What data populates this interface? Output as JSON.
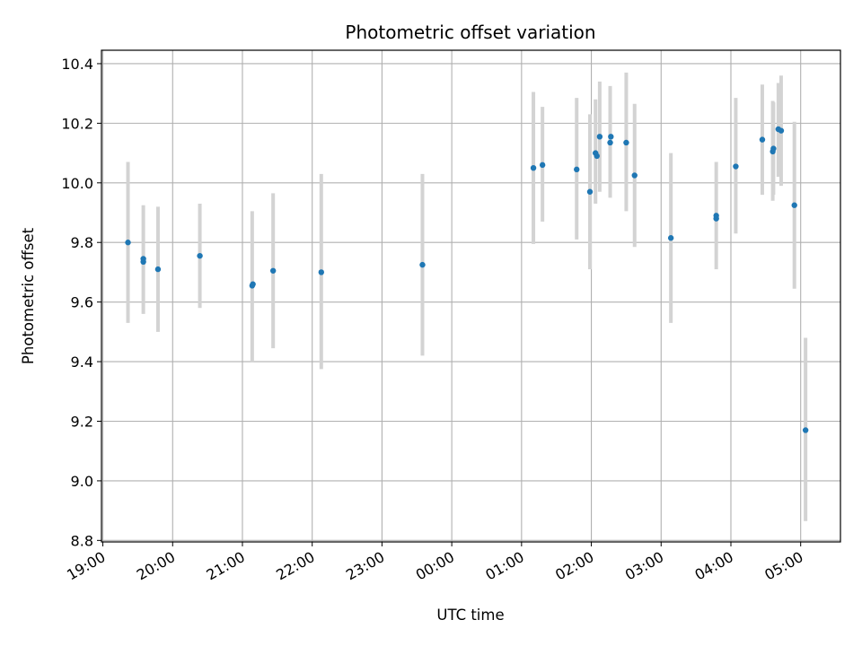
{
  "chart_data": {
    "type": "scatter",
    "title": "Photometric offset variation",
    "xlabel": "UTC time",
    "ylabel": "Photometric offset",
    "x_unit": "hours (UTC, continuing past midnight as 24+)",
    "xlim": [
      18.98,
      29.57
    ],
    "ylim": [
      8.795,
      10.445
    ],
    "x_ticks": [
      {
        "value": 19,
        "label": "19:00"
      },
      {
        "value": 20,
        "label": "20:00"
      },
      {
        "value": 21,
        "label": "21:00"
      },
      {
        "value": 22,
        "label": "22:00"
      },
      {
        "value": 23,
        "label": "23:00"
      },
      {
        "value": 24,
        "label": "00:00"
      },
      {
        "value": 25,
        "label": "01:00"
      },
      {
        "value": 26,
        "label": "02:00"
      },
      {
        "value": 27,
        "label": "03:00"
      },
      {
        "value": 28,
        "label": "04:00"
      },
      {
        "value": 29,
        "label": "05:00"
      }
    ],
    "y_ticks": [
      {
        "value": 8.8,
        "label": "8.8"
      },
      {
        "value": 9.0,
        "label": "9.0"
      },
      {
        "value": 9.2,
        "label": "9.2"
      },
      {
        "value": 9.4,
        "label": "9.4"
      },
      {
        "value": 9.6,
        "label": "9.6"
      },
      {
        "value": 9.8,
        "label": "9.8"
      },
      {
        "value": 10.0,
        "label": "10.0"
      },
      {
        "value": 10.2,
        "label": "10.2"
      },
      {
        "value": 10.4,
        "label": "10.4"
      }
    ],
    "grid": true,
    "point_color": "#1f77b4",
    "errorbar_color": "#d3d3d3",
    "points": [
      {
        "x": 19.36,
        "y": 9.8,
        "low": 9.53,
        "high": 10.07
      },
      {
        "x": 19.58,
        "y": 9.735,
        "low": 9.56,
        "high": 9.925
      },
      {
        "x": 19.58,
        "y": 9.745,
        "low": null,
        "high": null
      },
      {
        "x": 19.79,
        "y": 9.71,
        "low": 9.5,
        "high": 9.92
      },
      {
        "x": 20.39,
        "y": 9.755,
        "low": 9.58,
        "high": 9.93
      },
      {
        "x": 21.14,
        "y": 9.655,
        "low": 9.4,
        "high": 9.905
      },
      {
        "x": 21.15,
        "y": 9.66,
        "low": null,
        "high": null
      },
      {
        "x": 21.44,
        "y": 9.705,
        "low": 9.445,
        "high": 9.965
      },
      {
        "x": 22.13,
        "y": 9.7,
        "low": 9.375,
        "high": 10.03
      },
      {
        "x": 23.58,
        "y": 9.725,
        "low": 9.42,
        "high": 10.03
      },
      {
        "x": 25.17,
        "y": 10.05,
        "low": 9.795,
        "high": 10.305
      },
      {
        "x": 25.3,
        "y": 10.06,
        "low": 9.87,
        "high": 10.255
      },
      {
        "x": 25.79,
        "y": 10.045,
        "low": 9.81,
        "high": 10.285
      },
      {
        "x": 25.98,
        "y": 9.97,
        "low": 9.71,
        "high": 10.23
      },
      {
        "x": 26.06,
        "y": 10.1,
        "low": 9.93,
        "high": 10.28
      },
      {
        "x": 26.08,
        "y": 10.09,
        "low": 9.925,
        "high": null
      },
      {
        "x": 26.12,
        "y": 10.155,
        "low": 9.97,
        "high": 10.34
      },
      {
        "x": 26.27,
        "y": 10.135,
        "low": 9.95,
        "high": 10.325
      },
      {
        "x": 26.28,
        "y": 10.155,
        "low": null,
        "high": null
      },
      {
        "x": 26.5,
        "y": 10.135,
        "low": 9.905,
        "high": 10.37
      },
      {
        "x": 26.62,
        "y": 10.025,
        "low": 9.785,
        "high": 10.265
      },
      {
        "x": 27.14,
        "y": 9.815,
        "low": 9.53,
        "high": 10.1
      },
      {
        "x": 27.79,
        "y": 9.88,
        "low": 9.71,
        "high": 10.07
      },
      {
        "x": 27.79,
        "y": 9.89,
        "low": null,
        "high": null
      },
      {
        "x": 28.07,
        "y": 10.055,
        "low": 9.83,
        "high": 10.285
      },
      {
        "x": 28.45,
        "y": 10.145,
        "low": 9.96,
        "high": 10.33
      },
      {
        "x": 28.6,
        "y": 10.105,
        "low": 9.94,
        "high": 10.275
      },
      {
        "x": 28.61,
        "y": 10.115,
        "low": 9.96,
        "high": 10.27
      },
      {
        "x": 28.68,
        "y": 10.18,
        "low": 10.02,
        "high": 10.335
      },
      {
        "x": 28.72,
        "y": 10.175,
        "low": 9.99,
        "high": 10.36
      },
      {
        "x": 28.91,
        "y": 9.925,
        "low": 9.645,
        "high": 10.205
      },
      {
        "x": 29.07,
        "y": 9.17,
        "low": 8.865,
        "high": 9.48
      }
    ]
  }
}
